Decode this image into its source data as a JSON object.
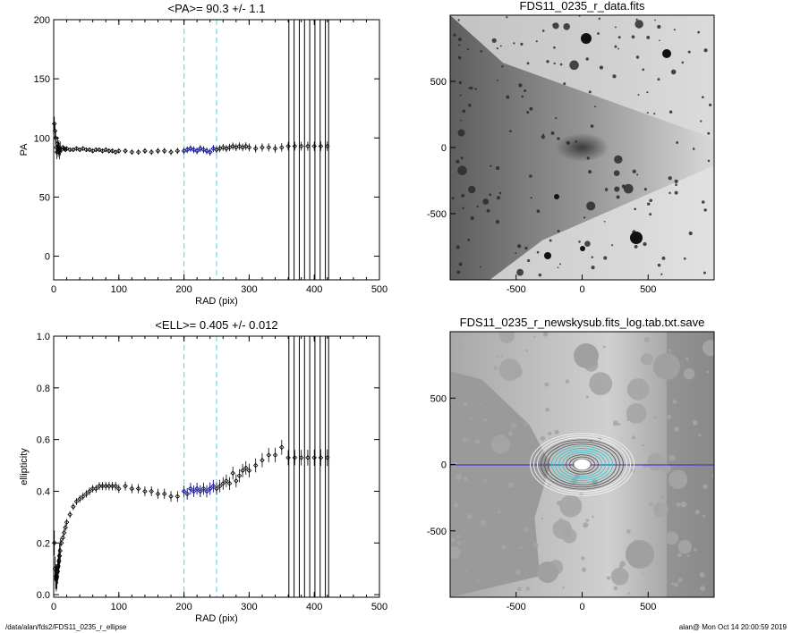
{
  "footer": {
    "left": "/data/alan/fds2/FDS11_0235_r_ellipse",
    "right": "alan@  Mon Oct 14 20:00:59 2019"
  },
  "colors": {
    "axes": "#000000",
    "points": "#000000",
    "fit_points": "#1a1aa8",
    "cyan_dashed": "#66e0e8",
    "background": "#ffffff"
  },
  "chart_data": [
    {
      "type": "scatter",
      "title": "<PA>=  90.3 +/-   1.1",
      "xlabel": "RAD (pix)",
      "ylabel": "PA",
      "xlim": [
        0,
        500
      ],
      "ylim": [
        -20,
        200
      ],
      "xticks": [
        0,
        100,
        200,
        300,
        400,
        500
      ],
      "yticks": [
        0,
        50,
        100,
        150,
        200
      ],
      "vlines_dashed": [
        200,
        250
      ],
      "vlines_solid": [
        361,
        369,
        377,
        385,
        393,
        401,
        409,
        417,
        422
      ],
      "series": [
        {
          "x": [
            1,
            2,
            3,
            4,
            5,
            6,
            7,
            8,
            9,
            10,
            12,
            14,
            16,
            18,
            20,
            25,
            30,
            35,
            40,
            45,
            50,
            55,
            60,
            65,
            70,
            75,
            80,
            85,
            90,
            95,
            100,
            110,
            120,
            130,
            140,
            150,
            160,
            170,
            180,
            190,
            200,
            205,
            210,
            215,
            220,
            225,
            230,
            235,
            240,
            245,
            250,
            255,
            260,
            265,
            270,
            275,
            280,
            285,
            290,
            295,
            300,
            310,
            320,
            330,
            340,
            350,
            360,
            370,
            380,
            390,
            400,
            410,
            420
          ],
          "y": [
            112,
            106,
            100,
            92,
            88,
            95,
            90,
            92,
            88,
            91,
            90,
            92,
            91,
            90,
            91,
            90,
            90,
            91,
            90,
            91,
            90,
            90,
            89,
            90,
            90,
            89,
            90,
            89,
            89,
            88,
            89,
            89,
            88,
            88,
            89,
            88,
            89,
            89,
            88,
            89,
            89,
            90,
            91,
            90,
            89,
            91,
            90,
            89,
            88,
            91,
            90,
            91,
            92,
            91,
            92,
            93,
            92,
            93,
            92,
            93,
            92,
            91,
            92,
            92,
            91,
            92,
            93,
            93,
            93,
            93,
            93,
            93,
            93
          ]
        },
        {
          "name": "",
          "x": [
            200,
            205,
            210,
            215,
            220,
            225,
            230,
            235,
            240,
            245
          ],
          "y": [
            89,
            90,
            91,
            90,
            89,
            91,
            90,
            89,
            88,
            91
          ]
        }
      ]
    },
    {
      "type": "scatter",
      "title": "<ELL>= 0.405 +/-  0.012",
      "xlabel": "RAD (pix)",
      "ylabel": "ellipticity",
      "xlim": [
        0,
        500
      ],
      "ylim": [
        -0.01,
        1.0
      ],
      "xticks": [
        0,
        100,
        200,
        300,
        400,
        500
      ],
      "yticks": [
        0.0,
        0.2,
        0.4,
        0.6,
        0.8,
        1.0
      ],
      "vlines_dashed": [
        200,
        250
      ],
      "vlines_solid": [
        361,
        369,
        377,
        385,
        393,
        401,
        409,
        417,
        422
      ],
      "series": [
        {
          "x": [
            1,
            2,
            3,
            4,
            5,
            6,
            7,
            8,
            9,
            10,
            12,
            14,
            16,
            18,
            20,
            25,
            30,
            35,
            40,
            45,
            50,
            55,
            60,
            65,
            70,
            75,
            80,
            85,
            90,
            95,
            100,
            110,
            120,
            130,
            140,
            150,
            160,
            170,
            180,
            190,
            200,
            205,
            210,
            215,
            220,
            225,
            230,
            235,
            240,
            245,
            250,
            255,
            260,
            265,
            270,
            275,
            280,
            285,
            290,
            295,
            300,
            310,
            320,
            330,
            340,
            350,
            360,
            370,
            380,
            390,
            400,
            410,
            420
          ],
          "y": [
            0.2,
            0.1,
            0.07,
            0.06,
            0.07,
            0.09,
            0.11,
            0.13,
            0.15,
            0.17,
            0.2,
            0.22,
            0.24,
            0.26,
            0.28,
            0.31,
            0.34,
            0.36,
            0.37,
            0.38,
            0.39,
            0.4,
            0.41,
            0.41,
            0.42,
            0.42,
            0.42,
            0.42,
            0.42,
            0.42,
            0.41,
            0.42,
            0.41,
            0.41,
            0.4,
            0.4,
            0.39,
            0.39,
            0.38,
            0.38,
            0.4,
            0.39,
            0.41,
            0.4,
            0.41,
            0.4,
            0.41,
            0.4,
            0.41,
            0.42,
            0.41,
            0.42,
            0.43,
            0.44,
            0.43,
            0.47,
            0.44,
            0.46,
            0.48,
            0.49,
            0.48,
            0.5,
            0.52,
            0.54,
            0.54,
            0.57,
            0.53,
            0.53,
            0.53,
            0.53,
            0.53,
            0.53,
            0.53
          ]
        },
        {
          "name": "",
          "x": [
            200,
            205,
            210,
            215,
            220,
            225,
            230,
            235,
            240,
            245
          ],
          "y": [
            0.4,
            0.39,
            0.41,
            0.4,
            0.41,
            0.4,
            0.41,
            0.4,
            0.41,
            0.42
          ]
        }
      ]
    },
    {
      "type": "heatmap",
      "title": "FDS11_0235_r_data.fits",
      "xlabel": "",
      "ylabel": "",
      "xlim": [
        -1000,
        1000
      ],
      "ylim": [
        -1000,
        1000
      ],
      "xticks": [
        -500,
        0,
        500
      ],
      "yticks": [
        -500,
        0,
        500
      ]
    },
    {
      "type": "heatmap",
      "title": "FDS11_0235_r_newskysub.fits_log.tab.txt.save",
      "xlabel": "",
      "ylabel": "",
      "xlim": [
        -1000,
        1000
      ],
      "ylim": [
        -1000,
        1000
      ],
      "xticks": [
        -500,
        0,
        500
      ],
      "yticks": [
        -500,
        0,
        500
      ]
    }
  ]
}
